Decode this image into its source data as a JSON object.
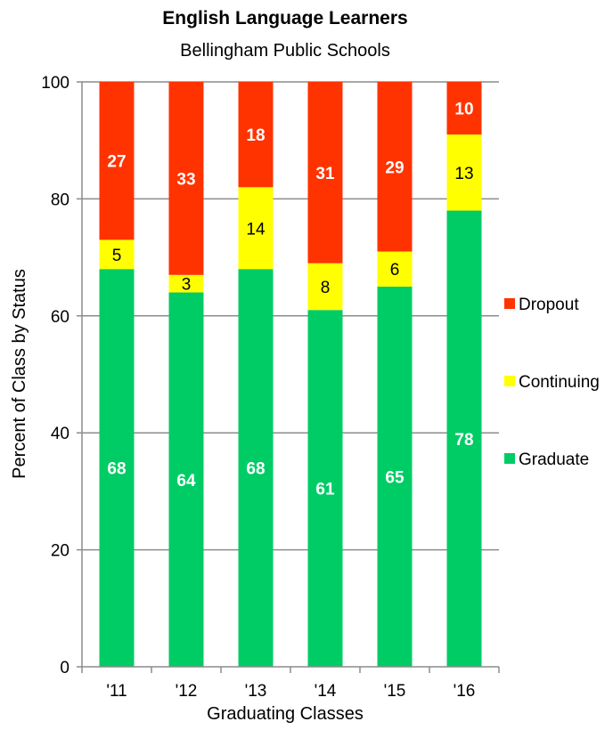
{
  "chart_data": {
    "type": "bar",
    "stacked": true,
    "title": "English Language Learners",
    "subtitle": "Bellingham Public Schools",
    "xlabel": "Graduating Classes",
    "ylabel": "Percent of Class by Status",
    "ylim": [
      0,
      100
    ],
    "yticks": [
      "0",
      "20",
      "40",
      "60",
      "80",
      "100"
    ],
    "categories": [
      "'11",
      "'12",
      "'13",
      "'14",
      "'15",
      "'16"
    ],
    "grid": true,
    "legend_position": "right",
    "series": [
      {
        "name": "Graduate",
        "color": "#00cc66",
        "label_color": "#ffffff",
        "label_bold": true,
        "values": [
          68,
          64,
          68,
          61,
          65,
          78
        ]
      },
      {
        "name": "Continuing",
        "color": "#ffff00",
        "label_color": "#000000",
        "label_bold": false,
        "values": [
          5,
          3,
          14,
          8,
          6,
          13
        ]
      },
      {
        "name": "Dropout",
        "color": "#ff3300",
        "label_color": "#ffffff",
        "label_bold": true,
        "values": [
          27,
          33,
          18,
          31,
          29,
          10
        ]
      }
    ],
    "legend_order": [
      "Dropout",
      "Continuing",
      "Graduate"
    ]
  }
}
